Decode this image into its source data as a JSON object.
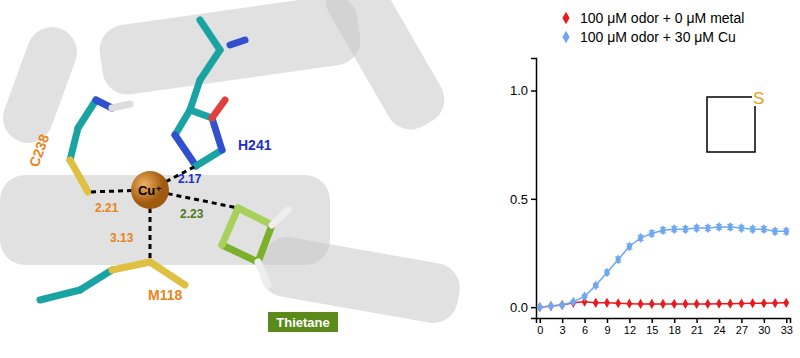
{
  "chart_data": {
    "type": "line",
    "x": [
      0,
      1.5,
      3,
      4.5,
      6,
      7.5,
      9,
      10.5,
      12,
      13.5,
      15,
      16.5,
      18,
      19.5,
      21,
      22.5,
      24,
      25.5,
      27,
      28.5,
      30,
      31.5,
      33
    ],
    "series": [
      {
        "name": "100 μM odor + 0 μM metal",
        "color": "#e8191f",
        "marker": "diamond",
        "values": [
          0.0,
          0.005,
          0.01,
          0.02,
          0.025,
          0.02,
          0.02,
          0.018,
          0.016,
          0.015,
          0.015,
          0.015,
          0.015,
          0.015,
          0.015,
          0.015,
          0.016,
          0.016,
          0.017,
          0.018,
          0.018,
          0.019,
          0.02
        ]
      },
      {
        "name": "100 μM odor + 30 μM Cu",
        "color": "#6fa8f0",
        "marker": "diamond",
        "values": [
          0.0,
          0.005,
          0.01,
          0.025,
          0.05,
          0.1,
          0.16,
          0.22,
          0.28,
          0.32,
          0.34,
          0.355,
          0.36,
          0.36,
          0.365,
          0.365,
          0.37,
          0.37,
          0.365,
          0.36,
          0.36,
          0.35,
          0.35
        ],
        "errors": [
          0.003,
          0.003,
          0.004,
          0.005,
          0.006,
          0.008,
          0.01,
          0.012,
          0.012,
          0.012,
          0.012,
          0.012,
          0.012,
          0.012,
          0.012,
          0.012,
          0.012,
          0.012,
          0.012,
          0.012,
          0.012,
          0.012,
          0.012
        ]
      }
    ],
    "xlim": [
      -0.5,
      33.5
    ],
    "xticks": [
      0,
      3,
      6,
      9,
      12,
      15,
      18,
      21,
      24,
      27,
      30,
      33
    ],
    "ylim": [
      -0.05,
      1.15
    ],
    "yticks": [
      {
        "value": 0,
        "label": "0.0"
      },
      {
        "value": 0.5,
        "label": "0.5"
      },
      {
        "value": 1,
        "label": "1.0"
      }
    ],
    "legend": "top",
    "annotations": [
      "S"
    ]
  },
  "structure": {
    "residues": [
      "C238",
      "H241",
      "M118"
    ],
    "metal": "Cu⁺",
    "ligand": "Thietane",
    "distances": [
      2.21,
      2.17,
      2.23,
      3.13
    ]
  }
}
